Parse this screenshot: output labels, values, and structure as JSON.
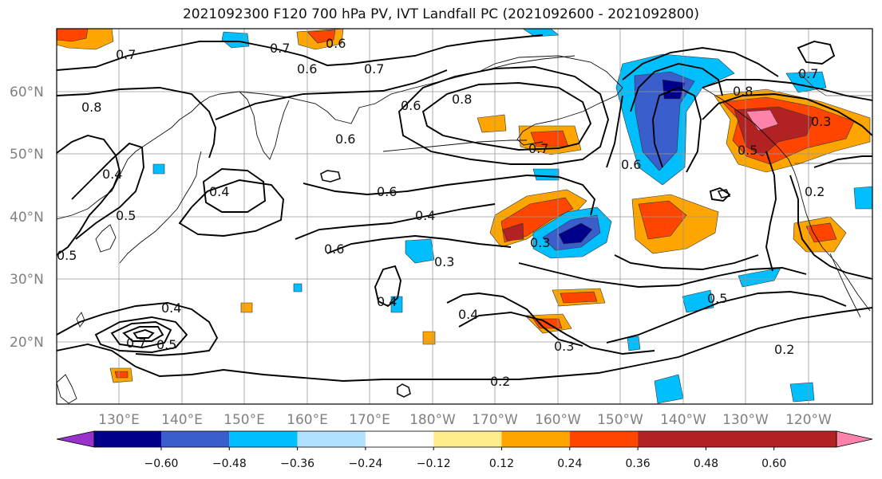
{
  "title": "2021092300 F120 700 hPa PV, IVT Landfall PC (2021092600 - 2021092800)",
  "lat_labels": [
    "60°N",
    "50°N",
    "40°N",
    "30°N",
    "20°N"
  ],
  "lon_labels": [
    "130°E",
    "140°E",
    "150°E",
    "160°E",
    "170°E",
    "180°W",
    "170°W",
    "160°W",
    "150°W",
    "140°W",
    "130°W",
    "120°W"
  ],
  "colorbar": {
    "colors": [
      "#9932CC",
      "#00008B",
      "#3A5FCD",
      "#00BFFF",
      "#B0E2FF",
      "#FFFFFF",
      "#FFEC8B",
      "#FFA500",
      "#FF4500",
      "#B22222",
      "#FF82AB"
    ],
    "tick_labels": [
      "−0.60",
      "−0.48",
      "−0.36",
      "−0.24",
      "−0.12",
      "0.12",
      "0.24",
      "0.36",
      "0.48",
      "0.60"
    ]
  },
  "contour_labels": [
    "0.7",
    "0.7",
    "0.6",
    "0.6",
    "0.7",
    "0.8",
    "0.6",
    "0.8",
    "0.7",
    "0.8",
    "0.3",
    "0.7",
    "0.4",
    "0.5",
    "0.4",
    "0.6",
    "0.6",
    "0.4",
    "0.3",
    "0.3",
    "0.6",
    "0.5",
    "0.5",
    "0.2",
    "0.4",
    "0.4",
    "0.3",
    "0.2",
    "0.7",
    "0.5",
    "0.5",
    "0.6",
    "0.4",
    "0.2"
  ]
}
